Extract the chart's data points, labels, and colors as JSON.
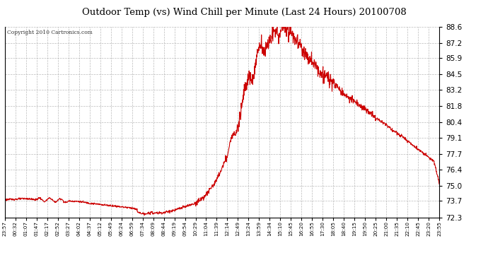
{
  "title": "Outdoor Temp (vs) Wind Chill per Minute (Last 24 Hours) 20100708",
  "copyright": "Copyright 2010 Cartronics.com",
  "line_color": "#cc0000",
  "background_color": "#ffffff",
  "grid_color": "#aaaaaa",
  "yticks": [
    72.3,
    73.7,
    75.0,
    76.4,
    77.7,
    79.1,
    80.4,
    81.8,
    83.2,
    84.5,
    85.9,
    87.2,
    88.6
  ],
  "ylim": [
    72.3,
    88.6
  ],
  "xtick_labels": [
    "23:57",
    "00:32",
    "01:07",
    "01:47",
    "02:17",
    "02:52",
    "03:27",
    "04:02",
    "04:37",
    "05:12",
    "05:49",
    "06:24",
    "06:59",
    "07:34",
    "08:09",
    "08:44",
    "09:19",
    "09:54",
    "10:29",
    "11:04",
    "11:39",
    "12:14",
    "12:49",
    "13:24",
    "13:59",
    "14:34",
    "15:10",
    "15:45",
    "16:20",
    "16:55",
    "17:30",
    "18:05",
    "18:40",
    "19:15",
    "19:50",
    "20:25",
    "21:00",
    "21:35",
    "22:10",
    "22:45",
    "23:20",
    "23:55"
  ],
  "control_x": [
    0,
    1,
    2,
    3,
    4,
    5,
    6,
    7,
    8,
    9,
    10,
    11,
    12,
    13,
    14,
    15,
    16,
    17,
    18,
    19,
    20,
    21,
    22,
    22.5,
    23,
    23.5,
    24,
    24.5,
    25,
    25.5,
    26,
    26.5,
    27,
    27.5,
    28,
    28.5,
    29,
    29.5,
    30,
    30.5,
    31,
    31.5,
    32,
    32.5,
    33,
    33.5,
    34,
    34.5,
    35,
    35.5,
    36,
    36.5,
    37,
    37.5,
    38,
    38.5,
    39,
    39.5,
    40,
    40.5,
    41
  ],
  "control_y": [
    73.8,
    73.85,
    73.9,
    73.8,
    73.8,
    73.75,
    73.7,
    73.65,
    73.5,
    73.4,
    73.3,
    73.2,
    73.1,
    72.8,
    72.65,
    72.7,
    72.9,
    73.2,
    73.5,
    74.2,
    75.5,
    77.5,
    80.5,
    82.5,
    84.2,
    84.8,
    86.5,
    87.0,
    87.4,
    87.8,
    88.4,
    88.6,
    88.2,
    87.5,
    86.8,
    86.2,
    85.6,
    85.0,
    84.5,
    84.2,
    83.8,
    83.3,
    82.8,
    82.5,
    82.2,
    81.9,
    81.5,
    81.2,
    80.8,
    80.5,
    80.2,
    79.8,
    79.5,
    79.2,
    78.8,
    78.5,
    78.1,
    77.8,
    77.4,
    77.1,
    75.2
  ]
}
